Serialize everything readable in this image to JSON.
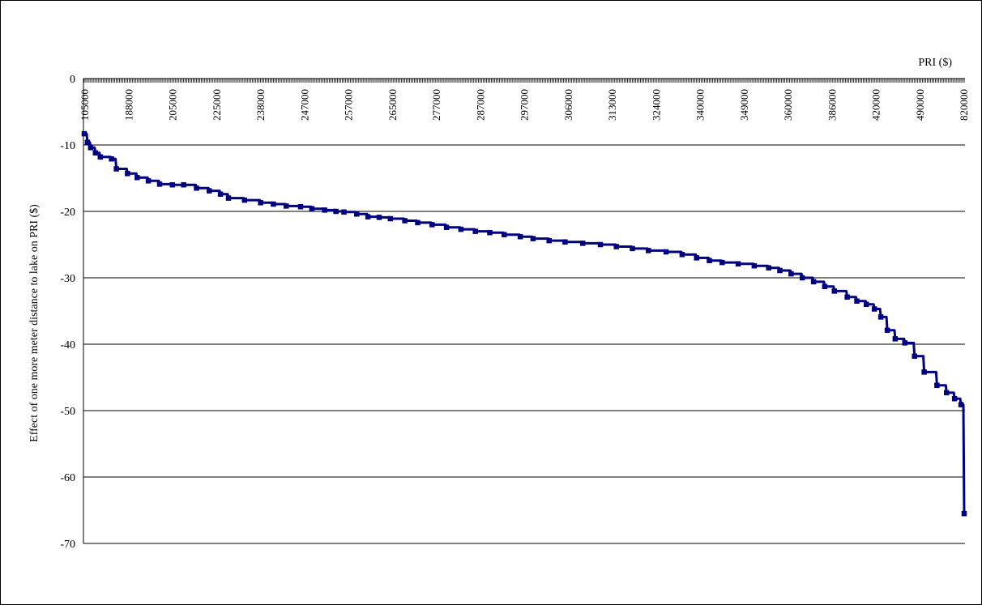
{
  "chart_data": {
    "type": "line",
    "title": "",
    "xlabel": "PRI ($)",
    "ylabel": "Effect of one more meter distance to lake on PRI ($)",
    "ylim": [
      -70,
      0
    ],
    "yticks": [
      0,
      -10,
      -20,
      -30,
      -40,
      -50,
      -60,
      -70
    ],
    "y_gridlines": true,
    "x_axis_position": "top",
    "x_tick_labels": [
      "105000",
      "188000",
      "205000",
      "225000",
      "238000",
      "247000",
      "257000",
      "265000",
      "277000",
      "287000",
      "297000",
      "306000",
      "313000",
      "324000",
      "340000",
      "349000",
      "360000",
      "386000",
      "420000",
      "490000",
      "820000"
    ],
    "series": [
      {
        "color": "#000080",
        "marker": "square",
        "n_points": 550,
        "values": [
          -8.3,
          -9.6,
          -10.4,
          -11.2,
          -11.8,
          -12.1,
          -13.6,
          -14.3,
          -14.9,
          -15.4,
          -15.9,
          -16.0,
          -16.0,
          -16.5,
          -16.9,
          -17.4,
          -18.0,
          -18.3,
          -18.7,
          -18.9,
          -19.2,
          -19.3,
          -19.6,
          -19.8,
          -20.0,
          -20.1,
          -20.4,
          -20.8,
          -20.9,
          -21.1,
          -21.4,
          -21.7,
          -22.0,
          -22.4,
          -22.7,
          -23.0,
          -23.2,
          -23.5,
          -23.8,
          -24.1,
          -24.4,
          -24.6,
          -24.8,
          -25.0,
          -25.3,
          -25.6,
          -25.9,
          -26.1,
          -26.5,
          -27.0,
          -27.4,
          -27.7,
          -27.9,
          -28.2,
          -28.5,
          -28.9,
          -29.4,
          -30.0,
          -30.6,
          -31.3,
          -32.0,
          -32.9,
          -33.5,
          -34.0,
          -34.7,
          -35.9,
          -37.9,
          -39.2,
          -39.8,
          -41.8,
          -44.2,
          -46.2,
          -47.3,
          -48.2,
          -49.1,
          -65.5
        ],
        "positions": [
          0,
          2,
          4,
          7,
          10,
          17,
          20,
          27,
          33,
          40,
          47,
          55,
          62,
          70,
          78,
          85,
          90,
          100,
          110,
          118,
          126,
          135,
          142,
          150,
          157,
          162,
          170,
          177,
          184,
          191,
          200,
          208,
          217,
          226,
          235,
          244,
          253,
          262,
          272,
          280,
          290,
          300,
          311,
          322,
          332,
          342,
          352,
          363,
          373,
          382,
          390,
          398,
          408,
          418,
          427,
          434,
          441,
          448,
          455,
          462,
          468,
          476,
          482,
          488,
          493,
          497,
          501,
          506,
          512,
          518,
          524,
          532,
          538,
          543,
          547,
          549
        ]
      }
    ]
  }
}
